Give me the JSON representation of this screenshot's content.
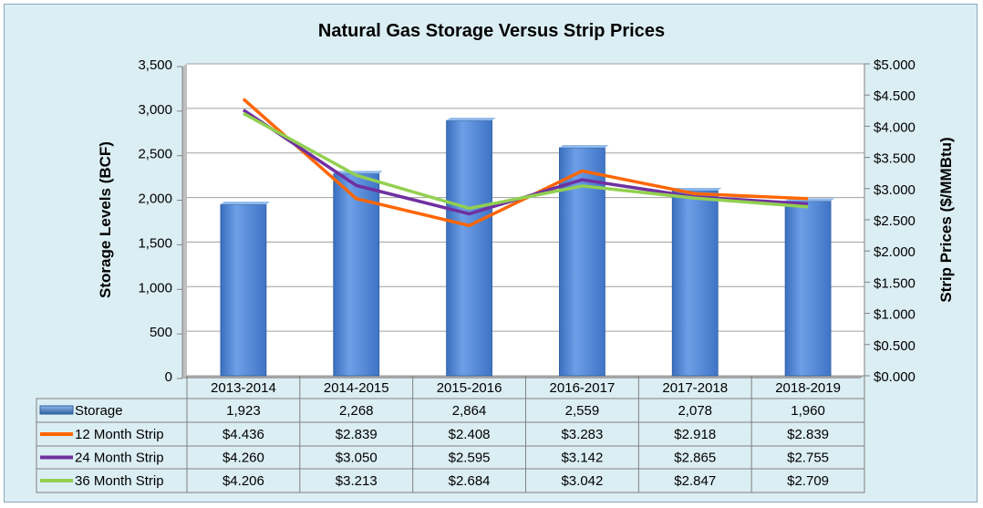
{
  "chart_data": {
    "type": "bar+line",
    "title": "Natural Gas Storage Versus Strip Prices",
    "categories": [
      "2013-2014",
      "2014-2015",
      "2015-2016",
      "2016-2017",
      "2017-2018",
      "2018-2019"
    ],
    "ylabel": "Storage Levels (BCF)",
    "y2label": "Strip Prices ($/MMBtu)",
    "ylim": [
      0,
      3500
    ],
    "y2lim": [
      0,
      5
    ],
    "yticks": [
      "0",
      "500",
      "1,000",
      "1,500",
      "2,000",
      "2,500",
      "3,000",
      "3,500"
    ],
    "y2ticks": [
      "$0.000",
      "$0.500",
      "$1.000",
      "$1.500",
      "$2.000",
      "$2.500",
      "$3.000",
      "$3.500",
      "$4.000",
      "$4.500",
      "$5.000"
    ],
    "series": [
      {
        "name": "Storage",
        "kind": "bar",
        "axis": "left",
        "color": "#4f86d6",
        "values": [
          1923,
          2268,
          2864,
          2559,
          2078,
          1960
        ],
        "labels": [
          "1,923",
          "2,268",
          "2,864",
          "2,559",
          "2,078",
          "1,960"
        ]
      },
      {
        "name": "12 Month Strip",
        "kind": "line",
        "axis": "right",
        "color": "#ff6600",
        "values": [
          4.436,
          2.839,
          2.408,
          3.283,
          2.918,
          2.839
        ],
        "labels": [
          "$4.436",
          "$2.839",
          "$2.408",
          "$3.283",
          "$2.918",
          "$2.839"
        ]
      },
      {
        "name": "24 Month Strip",
        "kind": "line",
        "axis": "right",
        "color": "#7030a0",
        "values": [
          4.26,
          3.05,
          2.595,
          3.142,
          2.865,
          2.755
        ],
        "labels": [
          "$4.260",
          "$3.050",
          "$2.595",
          "$3.142",
          "$2.865",
          "$2.755"
        ]
      },
      {
        "name": "36 Month Strip",
        "kind": "line",
        "axis": "right",
        "color": "#92d050",
        "values": [
          4.206,
          3.213,
          2.684,
          3.042,
          2.847,
          2.709
        ],
        "labels": [
          "$4.206",
          "$3.213",
          "$2.684",
          "$3.042",
          "$2.847",
          "$2.709"
        ]
      }
    ],
    "grid": true,
    "legend": "data-table"
  }
}
